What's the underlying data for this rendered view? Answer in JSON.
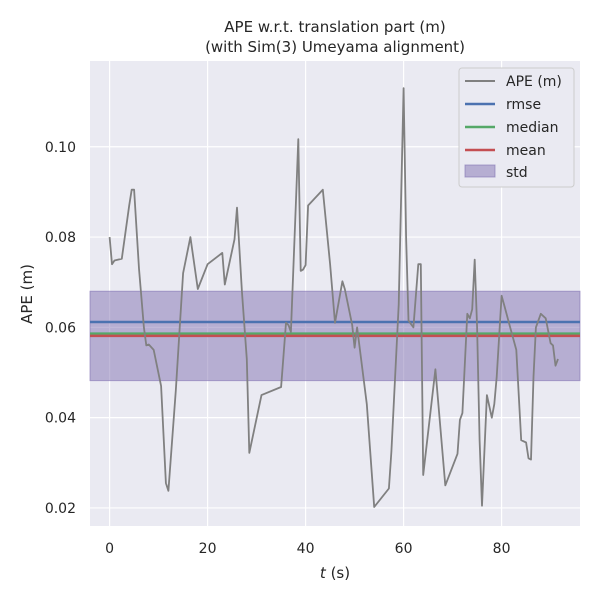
{
  "chart_data": {
    "type": "line",
    "title": "APE w.r.t. translation part (m)",
    "subtitle": "(with Sim(3) Umeyama alignment)",
    "xlabel_var": "t",
    "xlabel_unit": "(s)",
    "ylabel": "APE (m)",
    "xlim": [
      -4,
      96
    ],
    "ylim": [
      0.016,
      0.119
    ],
    "xticks": [
      0,
      20,
      40,
      60,
      80
    ],
    "yticks": [
      0.02,
      0.04,
      0.06,
      0.08,
      0.1
    ],
    "ytick_labels": [
      "0.02",
      "0.04",
      "0.06",
      "0.08",
      "0.10"
    ],
    "grid": true,
    "legend_position": "top-right",
    "legend": [
      "APE (m)",
      "rmse",
      "median",
      "mean",
      "std"
    ],
    "colors": {
      "background": "#eaeaf2",
      "grid": "#ffffff",
      "ape": "#808080",
      "rmse": "#4c72b0",
      "median": "#55a868",
      "mean": "#c44e52",
      "std": "#8172b2"
    },
    "series": [
      {
        "name": "APE (m)",
        "x": [
          0,
          0.5,
          1,
          2.5,
          4,
          4.5,
          5,
          6,
          7,
          7.5,
          8,
          9,
          10.5,
          11.5,
          12,
          13.5,
          15,
          16.5,
          18,
          20,
          23,
          23.5,
          25.5,
          26,
          27,
          28,
          28.5,
          31,
          35,
          35.5,
          36,
          36.5,
          37,
          38,
          38.5,
          39,
          39.5,
          40,
          40.5,
          43.5,
          45,
          46,
          47.5,
          48,
          49.5,
          50,
          50.5,
          52.5,
          54,
          57,
          57.5,
          59,
          60,
          60.5,
          61,
          62,
          63,
          63.5,
          64,
          66.5,
          68.5,
          71,
          71.5,
          72,
          73,
          73.5,
          74,
          74.5,
          75,
          75.5,
          76,
          77,
          78,
          78.5,
          79,
          80,
          80.5,
          82,
          83,
          84,
          85,
          85.5,
          86,
          86.5,
          87,
          88,
          89,
          90,
          90.5,
          91,
          91.5
        ],
        "y": [
          0.08,
          0.074,
          0.0748,
          0.0752,
          0.087,
          0.0905,
          0.0905,
          0.073,
          0.06,
          0.056,
          0.0562,
          0.055,
          0.047,
          0.0255,
          0.0238,
          0.046,
          0.072,
          0.08,
          0.0685,
          0.074,
          0.0765,
          0.0695,
          0.0795,
          0.0865,
          0.068,
          0.053,
          0.0322,
          0.045,
          0.0468,
          0.054,
          0.061,
          0.0605,
          0.059,
          0.087,
          0.1017,
          0.0725,
          0.0728,
          0.0738,
          0.087,
          0.0905,
          0.074,
          0.061,
          0.0702,
          0.0685,
          0.0605,
          0.0555,
          0.06,
          0.043,
          0.0202,
          0.0243,
          0.0325,
          0.065,
          0.113,
          0.08,
          0.0615,
          0.06,
          0.074,
          0.074,
          0.0273,
          0.0507,
          0.025,
          0.032,
          0.0395,
          0.041,
          0.063,
          0.062,
          0.064,
          0.075,
          0.06,
          0.035,
          0.0205,
          0.045,
          0.04,
          0.043,
          0.049,
          0.067,
          0.065,
          0.059,
          0.055,
          0.035,
          0.0345,
          0.031,
          0.0307,
          0.049,
          0.06,
          0.063,
          0.062,
          0.0565,
          0.056,
          0.0515,
          0.053
        ]
      }
    ],
    "stats": {
      "rmse": 0.0612,
      "median": 0.0586,
      "mean": 0.0581,
      "std_lower": 0.0482,
      "std_upper": 0.068
    }
  }
}
